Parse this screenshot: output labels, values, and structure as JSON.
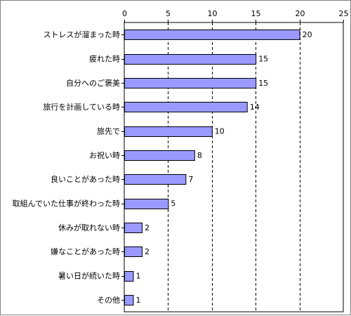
{
  "chart_data": {
    "type": "bar",
    "orientation": "horizontal",
    "categories": [
      "ストレスが溜まった時",
      "疲れた時",
      "自分へのご褒美",
      "旅行を計画している時",
      "旅先で",
      "お祝い時",
      "良いことがあった時",
      "取組んでいた仕事が終わった時",
      "休みが取れない時",
      "嫌なことがあった時",
      "暑い日が続いた時",
      "その他"
    ],
    "values": [
      20,
      15,
      15,
      14,
      10,
      8,
      7,
      5,
      2,
      2,
      1,
      1
    ],
    "xlim": [
      0,
      25
    ],
    "x_ticks": [
      0,
      5,
      10,
      15,
      20,
      25
    ],
    "grid": "vertical dashed",
    "bar_color": "#9999ff",
    "bar_edge_color": "#000000",
    "grid_color": "#000000",
    "title": "",
    "xlabel": "",
    "ylabel": ""
  }
}
